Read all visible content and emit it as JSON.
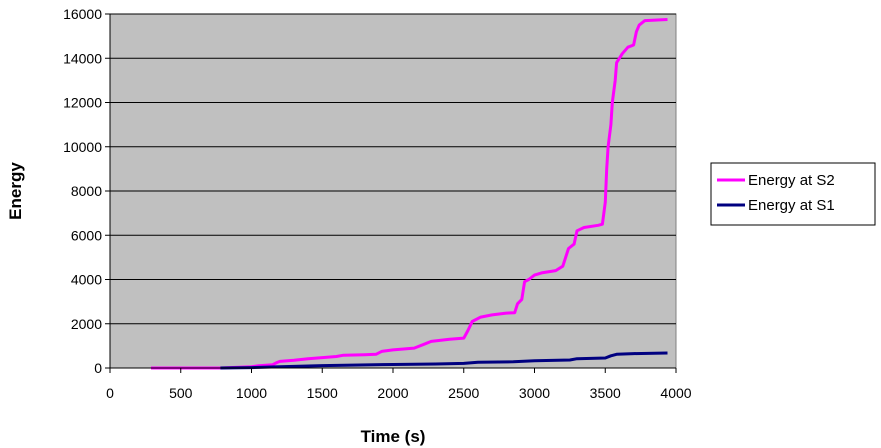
{
  "chart_data": {
    "type": "line",
    "title": "",
    "xlabel": "Time (s)",
    "ylabel": "Energy",
    "xlim": [
      0,
      4000
    ],
    "ylim": [
      0,
      16000
    ],
    "xticks": [
      0,
      500,
      1000,
      1500,
      2000,
      2500,
      3000,
      3500,
      4000
    ],
    "yticks": [
      0,
      2000,
      4000,
      6000,
      8000,
      10000,
      12000,
      14000,
      16000
    ],
    "grid": "horizontal",
    "plot_background": "#c0c0c0",
    "legend_position": "right",
    "series": [
      {
        "name": "Energy at S2",
        "color": "#ff00ff",
        "points": [
          [
            290,
            0
          ],
          [
            780,
            0
          ],
          [
            1000,
            60
          ],
          [
            1050,
            100
          ],
          [
            1150,
            150
          ],
          [
            1180,
            250
          ],
          [
            1200,
            300
          ],
          [
            1300,
            350
          ],
          [
            1400,
            420
          ],
          [
            1500,
            470
          ],
          [
            1600,
            520
          ],
          [
            1650,
            580
          ],
          [
            1800,
            600
          ],
          [
            1880,
            620
          ],
          [
            1920,
            750
          ],
          [
            2000,
            820
          ],
          [
            2150,
            900
          ],
          [
            2230,
            1100
          ],
          [
            2270,
            1200
          ],
          [
            2400,
            1300
          ],
          [
            2500,
            1350
          ],
          [
            2530,
            1700
          ],
          [
            2560,
            2100
          ],
          [
            2620,
            2300
          ],
          [
            2700,
            2400
          ],
          [
            2800,
            2480
          ],
          [
            2860,
            2500
          ],
          [
            2880,
            2900
          ],
          [
            2910,
            3100
          ],
          [
            2930,
            3900
          ],
          [
            2960,
            4000
          ],
          [
            3000,
            4200
          ],
          [
            3050,
            4300
          ],
          [
            3150,
            4400
          ],
          [
            3200,
            4600
          ],
          [
            3240,
            5400
          ],
          [
            3280,
            5600
          ],
          [
            3300,
            6200
          ],
          [
            3350,
            6350
          ],
          [
            3450,
            6450
          ],
          [
            3480,
            6500
          ],
          [
            3500,
            7500
          ],
          [
            3510,
            9000
          ],
          [
            3520,
            10000
          ],
          [
            3540,
            11000
          ],
          [
            3550,
            12000
          ],
          [
            3570,
            13000
          ],
          [
            3580,
            13800
          ],
          [
            3620,
            14200
          ],
          [
            3660,
            14500
          ],
          [
            3700,
            14600
          ],
          [
            3720,
            15200
          ],
          [
            3740,
            15500
          ],
          [
            3780,
            15700
          ],
          [
            3940,
            15750
          ]
        ]
      },
      {
        "name": "Energy at S1",
        "color": "#000080",
        "points": [
          [
            780,
            0
          ],
          [
            1000,
            20
          ],
          [
            1200,
            60
          ],
          [
            1500,
            110
          ],
          [
            2000,
            160
          ],
          [
            2300,
            180
          ],
          [
            2500,
            210
          ],
          [
            2600,
            260
          ],
          [
            2850,
            280
          ],
          [
            3000,
            330
          ],
          [
            3250,
            360
          ],
          [
            3300,
            420
          ],
          [
            3500,
            450
          ],
          [
            3540,
            550
          ],
          [
            3580,
            620
          ],
          [
            3700,
            650
          ],
          [
            3940,
            680
          ]
        ]
      }
    ]
  }
}
